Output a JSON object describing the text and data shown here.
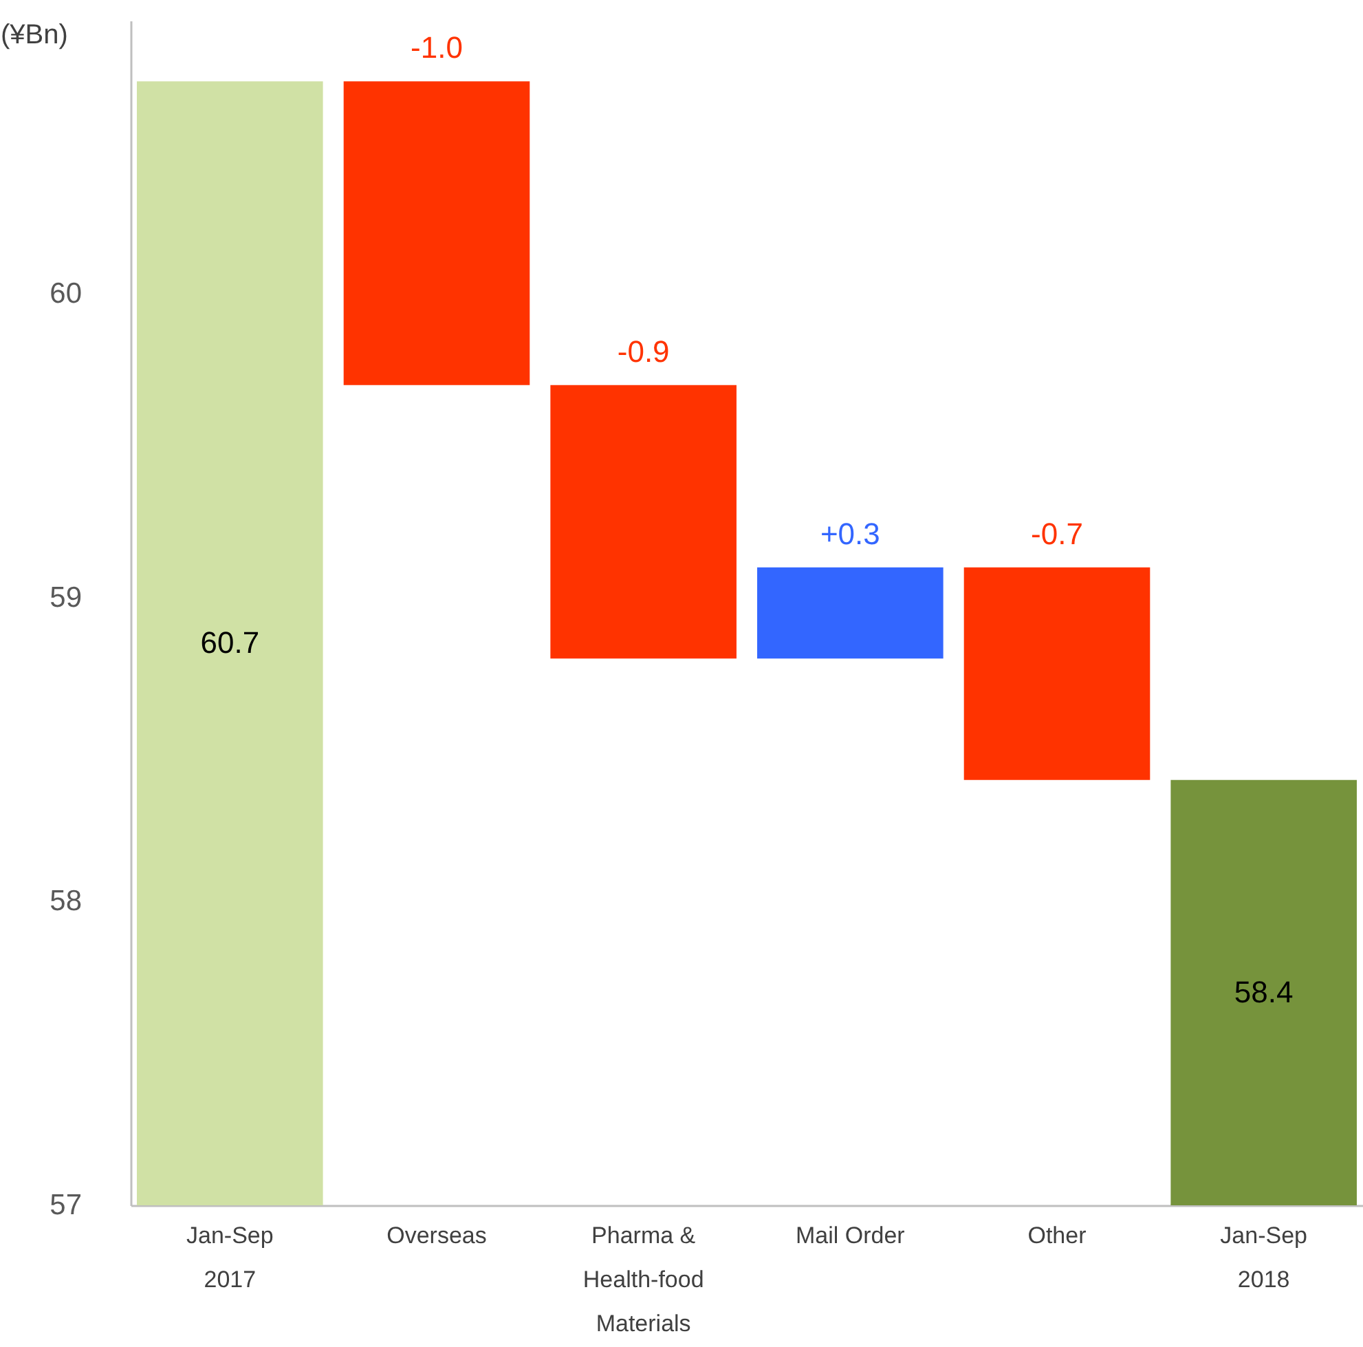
{
  "chart_data": {
    "type": "bar",
    "ylabel": "(¥Bn)",
    "categories": [
      "Jan-Sep\n2017",
      "Overseas",
      "Pharma &\nHealth-food\nMaterials",
      "Mail Order",
      "Other",
      "Jan-Sep\n2018"
    ],
    "values": [
      60.7,
      -1.0,
      -0.9,
      0.3,
      -0.7,
      58.4
    ],
    "base": [
      null,
      60.7,
      59.7,
      58.8,
      59.1,
      null
    ],
    "colors": [
      "#d0e1a5",
      "#ff3300",
      "#ff3300",
      "#3366ff",
      "#ff3300",
      "#76933c"
    ],
    "value_labels": [
      "60.7",
      "-1.0",
      "-0.9",
      "+0.3",
      "-0.7",
      "58.4"
    ],
    "ylim": [
      57,
      60.9
    ],
    "yticks": [
      57,
      58,
      59,
      60
    ],
    "grid": false
  }
}
